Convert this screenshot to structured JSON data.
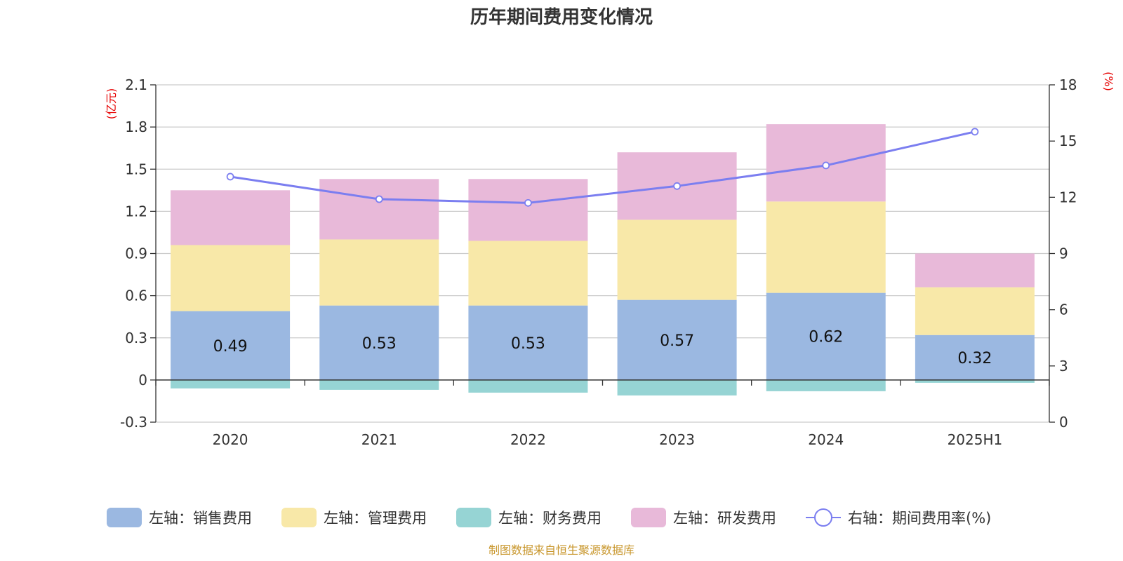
{
  "chart_data": {
    "type": "bar",
    "title": "历年期间费用变化情况",
    "categories": [
      "2020",
      "2021",
      "2022",
      "2023",
      "2024",
      "2025H1"
    ],
    "stacked": true,
    "y_left": {
      "unit": "(亿元)",
      "ylim": [
        -0.3,
        2.1
      ],
      "ticks": [
        "2.1",
        "1.8",
        "1.5",
        "1.2",
        "0.9",
        "0.6",
        "0.3",
        "0",
        "-0.3"
      ]
    },
    "y_right": {
      "unit": "(%)",
      "ylim": [
        0,
        18
      ],
      "ticks": [
        "18",
        "15",
        "12",
        "9",
        "6",
        "3",
        "0"
      ]
    },
    "grid": true,
    "series": [
      {
        "name": "左轴：销售费用",
        "axis": "left",
        "color": "#9bb8e1",
        "values": [
          0.49,
          0.53,
          0.53,
          0.57,
          0.62,
          0.32
        ],
        "labels": [
          "0.49",
          "0.53",
          "0.53",
          "0.57",
          "0.62",
          "0.32"
        ]
      },
      {
        "name": "左轴：管理费用",
        "axis": "left",
        "color": "#f8e8a8",
        "values": [
          0.47,
          0.47,
          0.46,
          0.57,
          0.65,
          0.34
        ]
      },
      {
        "name": "左轴：财务费用",
        "axis": "left",
        "color": "#96d4d4",
        "values": [
          -0.06,
          -0.07,
          -0.09,
          -0.11,
          -0.08,
          -0.02
        ]
      },
      {
        "name": "左轴：研发费用",
        "axis": "left",
        "color": "#e8b9d9",
        "values": [
          0.39,
          0.43,
          0.44,
          0.48,
          0.55,
          0.24
        ]
      },
      {
        "name": "右轴：期间费用率(%)",
        "axis": "right",
        "type": "line",
        "color": "#7b7ef0",
        "values": [
          13.1,
          11.9,
          11.7,
          12.6,
          13.7,
          15.5
        ]
      }
    ],
    "legend_position": "bottom",
    "source": "制图数据来自恒生聚源数据库"
  }
}
